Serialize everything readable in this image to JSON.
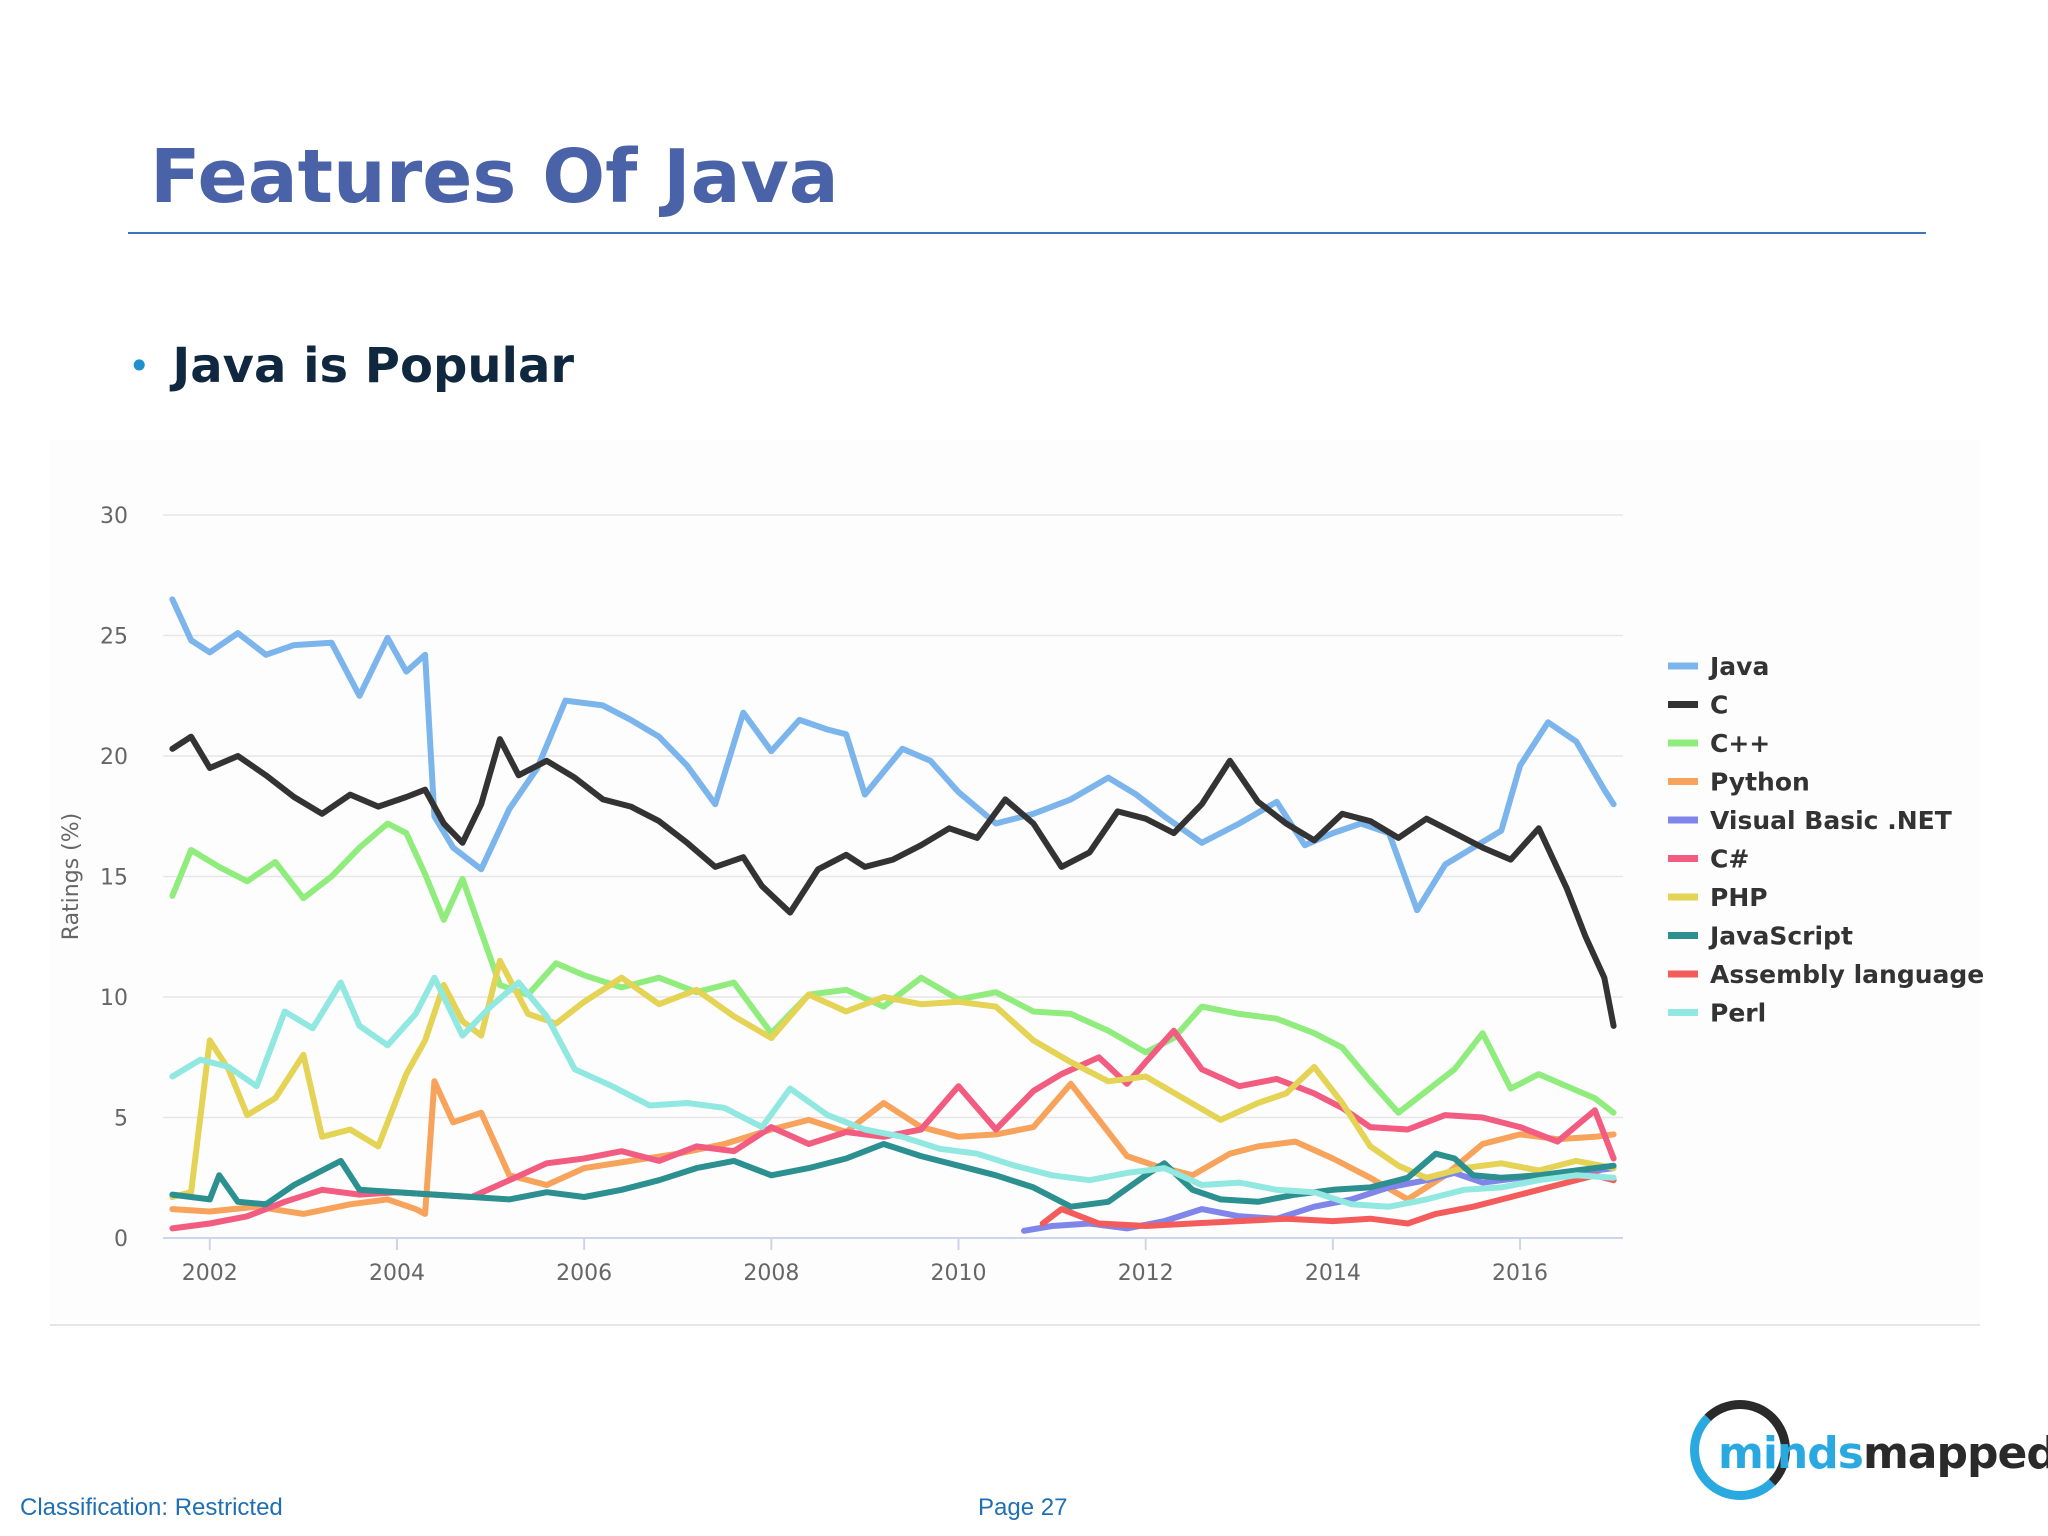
{
  "slide": {
    "title": "Features Of Java",
    "bullet": "Java is Popular",
    "footer_classification": "Classification: Restricted",
    "footer_page": "Page 27",
    "logo": {
      "part1": "minds",
      "part2": "mapped"
    }
  },
  "colors": {
    "title": "#4a63a8",
    "rule": "#3b76b8",
    "bullet_dot": "#1f8fcf",
    "footer_text": "#1f6fb3"
  },
  "chart_data": {
    "type": "line",
    "title": "",
    "xlabel": "",
    "ylabel": "Ratings (%)",
    "xlim": [
      2001.5,
      2017.1
    ],
    "ylim": [
      0,
      30
    ],
    "y_ticks": [
      "0",
      "5",
      "10",
      "15",
      "20",
      "25",
      "30"
    ],
    "x_ticks": [
      "2002",
      "2004",
      "2006",
      "2008",
      "2010",
      "2012",
      "2014",
      "2016"
    ],
    "grid": true,
    "legend": "right",
    "series": [
      {
        "name": "Java",
        "color": "#7cb5ec",
        "x": [
          2001.6,
          2001.8,
          2002.0,
          2002.3,
          2002.6,
          2002.9,
          2003.3,
          2003.6,
          2003.9,
          2004.1,
          2004.3,
          2004.4,
          2004.6,
          2004.9,
          2005.2,
          2005.5,
          2005.8,
          2006.2,
          2006.5,
          2006.8,
          2007.1,
          2007.4,
          2007.7,
          2008.0,
          2008.3,
          2008.6,
          2008.8,
          2009.0,
          2009.4,
          2009.7,
          2010.0,
          2010.4,
          2010.8,
          2011.2,
          2011.6,
          2011.9,
          2012.2,
          2012.6,
          2013.0,
          2013.4,
          2013.7,
          2014.0,
          2014.3,
          2014.6,
          2014.9,
          2015.2,
          2015.5,
          2015.8,
          2016.0,
          2016.3,
          2016.6,
          2016.9,
          2017.0
        ],
        "values": [
          26.5,
          24.8,
          24.3,
          25.1,
          24.2,
          24.6,
          24.7,
          22.5,
          24.9,
          23.5,
          24.2,
          17.5,
          16.2,
          15.3,
          17.8,
          19.5,
          22.3,
          22.1,
          21.5,
          20.8,
          19.6,
          18.0,
          21.8,
          20.2,
          21.5,
          21.1,
          20.9,
          18.4,
          20.3,
          19.8,
          18.5,
          17.2,
          17.6,
          18.2,
          19.1,
          18.4,
          17.5,
          16.4,
          17.2,
          18.1,
          16.3,
          16.8,
          17.2,
          16.8,
          13.6,
          15.5,
          16.2,
          16.9,
          19.6,
          21.4,
          20.6,
          18.6,
          18.0
        ]
      },
      {
        "name": "C",
        "color": "#333333",
        "x": [
          2001.6,
          2001.8,
          2002.0,
          2002.3,
          2002.6,
          2002.9,
          2003.2,
          2003.5,
          2003.8,
          2004.1,
          2004.3,
          2004.5,
          2004.7,
          2004.9,
          2005.1,
          2005.3,
          2005.6,
          2005.9,
          2006.2,
          2006.5,
          2006.8,
          2007.1,
          2007.4,
          2007.7,
          2007.9,
          2008.2,
          2008.5,
          2008.8,
          2009.0,
          2009.3,
          2009.6,
          2009.9,
          2010.2,
          2010.5,
          2010.8,
          2011.1,
          2011.4,
          2011.7,
          2012.0,
          2012.3,
          2012.6,
          2012.9,
          2013.2,
          2013.5,
          2013.8,
          2014.1,
          2014.4,
          2014.7,
          2015.0,
          2015.3,
          2015.6,
          2015.9,
          2016.2,
          2016.5,
          2016.7,
          2016.9,
          2017.0
        ],
        "values": [
          20.3,
          20.8,
          19.5,
          20.0,
          19.2,
          18.3,
          17.6,
          18.4,
          17.9,
          18.3,
          18.6,
          17.2,
          16.4,
          18.0,
          20.7,
          19.2,
          19.8,
          19.1,
          18.2,
          17.9,
          17.3,
          16.4,
          15.4,
          15.8,
          14.6,
          13.5,
          15.3,
          15.9,
          15.4,
          15.7,
          16.3,
          17.0,
          16.6,
          18.2,
          17.2,
          15.4,
          16.0,
          17.7,
          17.4,
          16.8,
          18.0,
          19.8,
          18.1,
          17.2,
          16.5,
          17.6,
          17.3,
          16.6,
          17.4,
          16.8,
          16.2,
          15.7,
          17.0,
          14.5,
          12.5,
          10.8,
          8.8
        ]
      },
      {
        "name": "C++",
        "color": "#90ed7d",
        "x": [
          2001.6,
          2001.8,
          2002.1,
          2002.4,
          2002.7,
          2003.0,
          2003.3,
          2003.6,
          2003.9,
          2004.1,
          2004.3,
          2004.5,
          2004.7,
          2004.9,
          2005.1,
          2005.4,
          2005.7,
          2006.0,
          2006.4,
          2006.8,
          2007.2,
          2007.6,
          2008.0,
          2008.4,
          2008.8,
          2009.2,
          2009.6,
          2010.0,
          2010.4,
          2010.8,
          2011.2,
          2011.6,
          2012.0,
          2012.3,
          2012.6,
          2013.0,
          2013.4,
          2013.8,
          2014.1,
          2014.4,
          2014.7,
          2015.0,
          2015.3,
          2015.6,
          2015.9,
          2016.2,
          2016.5,
          2016.8,
          2017.0
        ],
        "values": [
          14.2,
          16.1,
          15.4,
          14.8,
          15.6,
          14.1,
          15.0,
          16.2,
          17.2,
          16.8,
          15.1,
          13.2,
          14.9,
          12.7,
          10.5,
          10.1,
          11.4,
          10.9,
          10.4,
          10.8,
          10.2,
          10.6,
          8.5,
          10.1,
          10.3,
          9.6,
          10.8,
          9.9,
          10.2,
          9.4,
          9.3,
          8.6,
          7.7,
          8.3,
          9.6,
          9.3,
          9.1,
          8.5,
          7.9,
          6.5,
          5.2,
          6.1,
          7.0,
          8.5,
          6.2,
          6.8,
          6.3,
          5.8,
          5.2
        ]
      },
      {
        "name": "Python",
        "color": "#f7a35c",
        "x": [
          2001.6,
          2002.0,
          2002.5,
          2003.0,
          2003.5,
          2003.9,
          2004.2,
          2004.3,
          2004.4,
          2004.6,
          2004.9,
          2005.2,
          2005.6,
          2006.0,
          2006.5,
          2007.0,
          2007.5,
          2008.0,
          2008.4,
          2008.8,
          2009.2,
          2009.6,
          2010.0,
          2010.4,
          2010.8,
          2011.2,
          2011.5,
          2011.8,
          2012.1,
          2012.5,
          2012.9,
          2013.2,
          2013.6,
          2014.0,
          2014.4,
          2014.8,
          2015.2,
          2015.6,
          2016.0,
          2016.4,
          2016.8,
          2017.0
        ],
        "values": [
          1.2,
          1.1,
          1.3,
          1.0,
          1.4,
          1.6,
          1.2,
          1.0,
          6.5,
          4.8,
          5.2,
          2.6,
          2.2,
          2.9,
          3.2,
          3.5,
          3.9,
          4.5,
          4.9,
          4.4,
          5.6,
          4.6,
          4.2,
          4.3,
          4.6,
          6.4,
          4.9,
          3.4,
          3.0,
          2.6,
          3.5,
          3.8,
          4.0,
          3.3,
          2.5,
          1.6,
          2.6,
          3.9,
          4.3,
          4.1,
          4.2,
          4.3
        ]
      },
      {
        "name": "Visual Basic .NET",
        "color": "#8085e9",
        "x": [
          2010.7,
          2011.0,
          2011.4,
          2011.8,
          2012.2,
          2012.6,
          2013.0,
          2013.4,
          2013.8,
          2014.2,
          2014.6,
          2015.0,
          2015.3,
          2015.6,
          2016.0,
          2016.4,
          2016.8,
          2017.0
        ],
        "values": [
          0.3,
          0.5,
          0.6,
          0.4,
          0.7,
          1.2,
          0.9,
          0.8,
          1.3,
          1.6,
          2.1,
          2.4,
          2.7,
          2.3,
          2.5,
          2.6,
          2.8,
          2.9
        ]
      },
      {
        "name": "C#",
        "color": "#f15c80",
        "x": [
          2001.6,
          2002.0,
          2002.4,
          2002.8,
          2003.2,
          2003.6,
          2004.0,
          2004.4,
          2004.8,
          2005.2,
          2005.6,
          2006.0,
          2006.4,
          2006.8,
          2007.2,
          2007.6,
          2008.0,
          2008.4,
          2008.8,
          2009.2,
          2009.6,
          2010.0,
          2010.4,
          2010.8,
          2011.1,
          2011.5,
          2011.8,
          2012.0,
          2012.3,
          2012.6,
          2013.0,
          2013.4,
          2013.8,
          2014.1,
          2014.4,
          2014.8,
          2015.2,
          2015.6,
          2016.0,
          2016.4,
          2016.8,
          2017.0
        ],
        "values": [
          0.4,
          0.6,
          0.9,
          1.5,
          2.0,
          1.8,
          1.9,
          1.8,
          1.7,
          2.4,
          3.1,
          3.3,
          3.6,
          3.2,
          3.8,
          3.6,
          4.6,
          3.9,
          4.4,
          4.2,
          4.5,
          6.3,
          4.5,
          6.1,
          6.8,
          7.5,
          6.4,
          7.3,
          8.6,
          7.0,
          6.3,
          6.6,
          6.0,
          5.4,
          4.6,
          4.5,
          5.1,
          5.0,
          4.6,
          4.0,
          5.3,
          3.3
        ]
      },
      {
        "name": "PHP",
        "color": "#e4d354",
        "x": [
          2001.6,
          2001.8,
          2002.0,
          2002.2,
          2002.4,
          2002.7,
          2003.0,
          2003.2,
          2003.5,
          2003.8,
          2004.1,
          2004.3,
          2004.5,
          2004.7,
          2004.9,
          2005.1,
          2005.4,
          2005.7,
          2006.0,
          2006.4,
          2006.8,
          2007.2,
          2007.6,
          2008.0,
          2008.4,
          2008.8,
          2009.2,
          2009.6,
          2010.0,
          2010.4,
          2010.8,
          2011.2,
          2011.6,
          2012.0,
          2012.4,
          2012.8,
          2013.2,
          2013.5,
          2013.8,
          2014.1,
          2014.4,
          2014.7,
          2015.0,
          2015.4,
          2015.8,
          2016.2,
          2016.6,
          2017.0
        ],
        "values": [
          1.7,
          1.9,
          8.2,
          7.0,
          5.1,
          5.8,
          7.6,
          4.2,
          4.5,
          3.8,
          6.8,
          8.2,
          10.5,
          9.0,
          8.4,
          11.5,
          9.3,
          8.9,
          9.8,
          10.8,
          9.7,
          10.3,
          9.2,
          8.3,
          10.1,
          9.4,
          10.0,
          9.7,
          9.8,
          9.6,
          8.2,
          7.3,
          6.5,
          6.7,
          5.8,
          4.9,
          5.6,
          6.0,
          7.1,
          5.6,
          3.8,
          3.0,
          2.5,
          2.9,
          3.1,
          2.8,
          3.2,
          2.9
        ]
      },
      {
        "name": "JavaScript",
        "color": "#2b908f",
        "x": [
          2001.6,
          2002.0,
          2002.1,
          2002.3,
          2002.6,
          2002.9,
          2003.2,
          2003.4,
          2003.6,
          2004.0,
          2004.4,
          2004.8,
          2005.2,
          2005.6,
          2006.0,
          2006.4,
          2006.8,
          2007.2,
          2007.6,
          2008.0,
          2008.4,
          2008.8,
          2009.2,
          2009.6,
          2010.0,
          2010.4,
          2010.8,
          2011.2,
          2011.6,
          2012.0,
          2012.2,
          2012.5,
          2012.8,
          2013.2,
          2013.6,
          2014.0,
          2014.4,
          2014.8,
          2015.1,
          2015.3,
          2015.5,
          2015.8,
          2016.2,
          2016.6,
          2017.0
        ],
        "values": [
          1.8,
          1.6,
          2.6,
          1.5,
          1.4,
          2.2,
          2.8,
          3.2,
          2.0,
          1.9,
          1.8,
          1.7,
          1.6,
          1.9,
          1.7,
          2.0,
          2.4,
          2.9,
          3.2,
          2.6,
          2.9,
          3.3,
          3.9,
          3.4,
          3.0,
          2.6,
          2.1,
          1.3,
          1.5,
          2.6,
          3.1,
          2.0,
          1.6,
          1.5,
          1.8,
          2.0,
          2.1,
          2.5,
          3.5,
          3.3,
          2.6,
          2.5,
          2.6,
          2.8,
          3.0
        ]
      },
      {
        "name": "Assembly language",
        "color": "#f45b5b",
        "x": [
          2010.9,
          2011.1,
          2011.5,
          2012.0,
          2012.5,
          2013.0,
          2013.5,
          2014.0,
          2014.4,
          2014.8,
          2015.1,
          2015.5,
          2016.0,
          2016.4,
          2016.8,
          2017.0
        ],
        "values": [
          0.6,
          1.2,
          0.6,
          0.5,
          0.6,
          0.7,
          0.8,
          0.7,
          0.8,
          0.6,
          1.0,
          1.3,
          1.8,
          2.2,
          2.6,
          2.4
        ]
      },
      {
        "name": "Perl",
        "color": "#91e8e1",
        "x": [
          2001.6,
          2001.9,
          2002.2,
          2002.5,
          2002.8,
          2003.1,
          2003.4,
          2003.6,
          2003.9,
          2004.2,
          2004.4,
          2004.7,
          2005.0,
          2005.3,
          2005.6,
          2005.9,
          2006.3,
          2006.7,
          2007.1,
          2007.5,
          2007.9,
          2008.2,
          2008.6,
          2009.0,
          2009.4,
          2009.8,
          2010.2,
          2010.6,
          2011.0,
          2011.4,
          2011.8,
          2012.2,
          2012.6,
          2013.0,
          2013.4,
          2013.8,
          2014.2,
          2014.6,
          2015.0,
          2015.4,
          2015.8,
          2016.2,
          2016.6,
          2017.0
        ],
        "values": [
          6.7,
          7.4,
          7.1,
          6.3,
          9.4,
          8.7,
          10.6,
          8.8,
          8.0,
          9.3,
          10.8,
          8.4,
          9.6,
          10.6,
          9.2,
          7.0,
          6.3,
          5.5,
          5.6,
          5.4,
          4.6,
          6.2,
          5.1,
          4.5,
          4.2,
          3.7,
          3.5,
          3.0,
          2.6,
          2.4,
          2.7,
          2.9,
          2.2,
          2.3,
          2.0,
          1.9,
          1.4,
          1.3,
          1.6,
          2.0,
          2.1,
          2.4,
          2.6,
          2.5
        ]
      }
    ]
  }
}
